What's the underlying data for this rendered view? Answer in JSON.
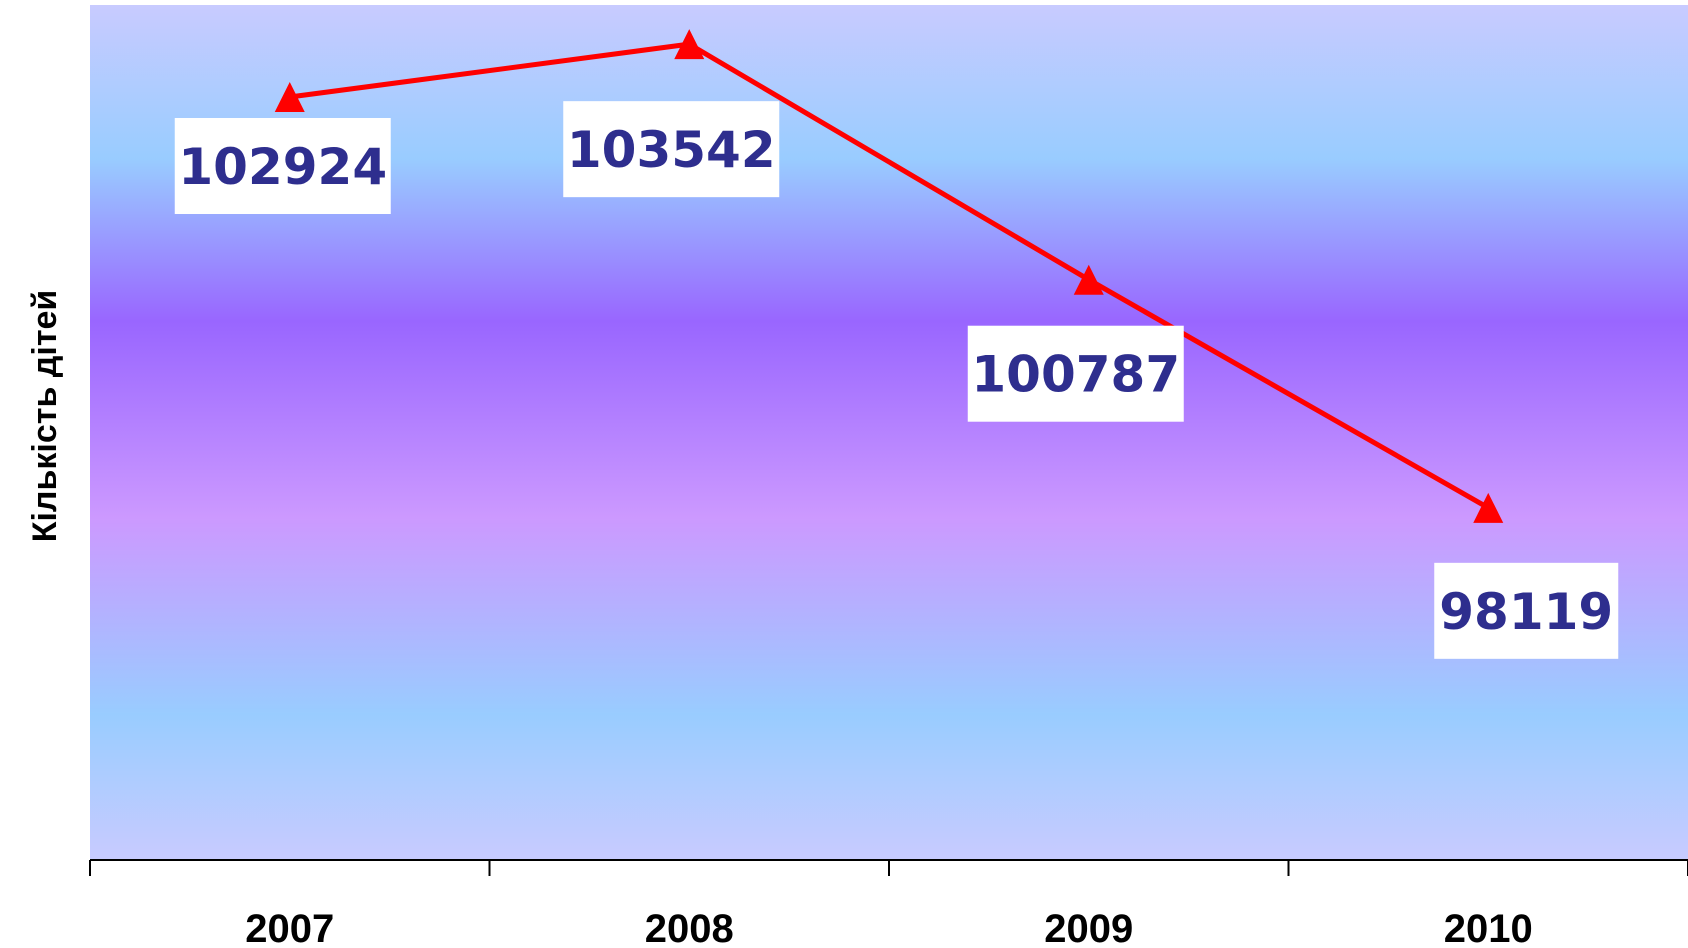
{
  "chart_data": {
    "type": "line",
    "title": "",
    "xlabel": "",
    "ylabel": "Кількість дітей",
    "categories": [
      "2007",
      "2008",
      "2009",
      "2010"
    ],
    "series": [
      {
        "values": [
          102924,
          103542,
          100787,
          98119
        ],
        "color": "#ff0000",
        "marker": "triangle"
      }
    ],
    "data_labels": [
      "102924",
      "103542",
      "100787",
      "98119"
    ],
    "ylim": [
      94000,
      104000
    ],
    "grid": false,
    "legend": "none"
  },
  "colors": {
    "line": "#ff0000",
    "label_text": "#2e2e8e",
    "label_box": "#ffffff",
    "plot_gradient": [
      "#c8ccff",
      "#99ccff",
      "#9966ff",
      "#cc99ff",
      "#99ccff",
      "#c8ccff"
    ]
  }
}
